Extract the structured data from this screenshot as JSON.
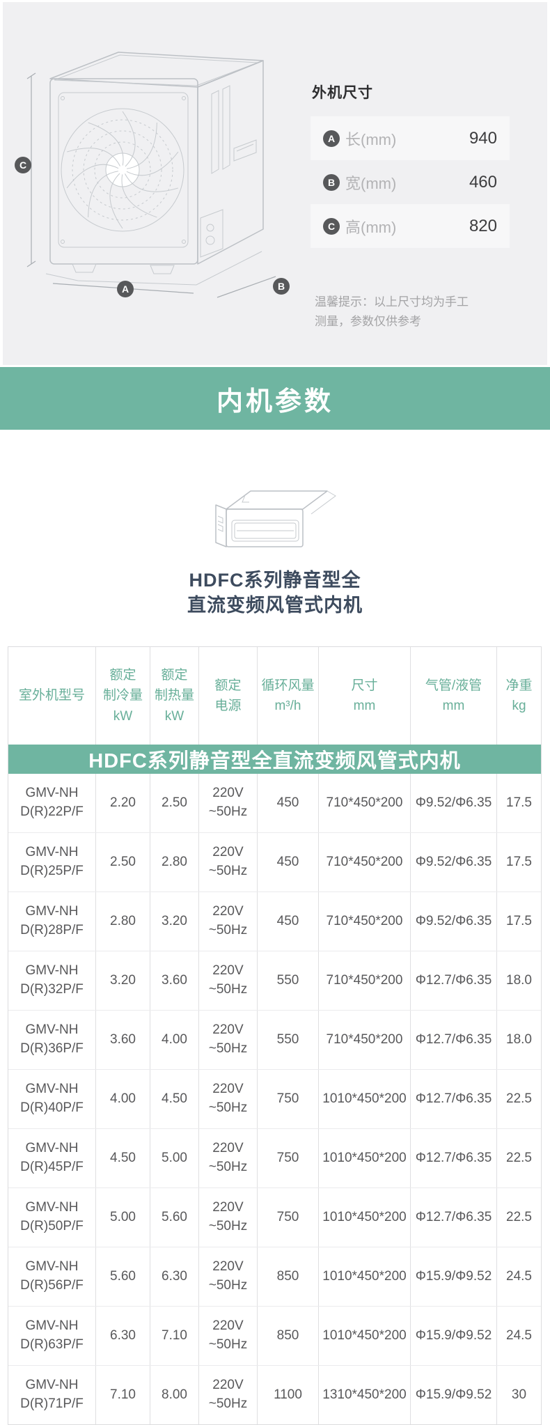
{
  "outer": {
    "title": "外机尺寸",
    "badges": {
      "a": "A",
      "b": "B",
      "c": "C"
    },
    "rows": [
      {
        "badge": "A",
        "label": "长(mm)",
        "value": "940"
      },
      {
        "badge": "B",
        "label": "宽(mm)",
        "value": "460"
      },
      {
        "badge": "C",
        "label": "高(mm)",
        "value": "820"
      }
    ],
    "tip": "温馨提示：以上尺寸均为手工\n测量，参数仅供参考"
  },
  "banner": {
    "title": "内机参数"
  },
  "product": {
    "title": "HDFC系列静音型全\n直流变频风管式内机"
  },
  "table": {
    "headers": [
      "室外机型号",
      "额定\n制冷量\nkW",
      "额定\n制热量\nkW",
      "额定\n电源",
      "循环风量\nm³/h",
      "尺寸\nmm",
      "气管/液管\nmm",
      "净重\nkg"
    ],
    "group_title": "HDFC系列静音型全直流变频风管式内机",
    "rows": [
      [
        "GMV-NH\nD(R)22P/F",
        "2.20",
        "2.50",
        "220V\n~50Hz",
        "450",
        "710*450*200",
        "Φ9.52/Φ6.35",
        "17.5"
      ],
      [
        "GMV-NH\nD(R)25P/F",
        "2.50",
        "2.80",
        "220V\n~50Hz",
        "450",
        "710*450*200",
        "Φ9.52/Φ6.35",
        "17.5"
      ],
      [
        "GMV-NH\nD(R)28P/F",
        "2.80",
        "3.20",
        "220V\n~50Hz",
        "450",
        "710*450*200",
        "Φ9.52/Φ6.35",
        "17.5"
      ],
      [
        "GMV-NH\nD(R)32P/F",
        "3.20",
        "3.60",
        "220V\n~50Hz",
        "550",
        "710*450*200",
        "Φ12.7/Φ6.35",
        "18.0"
      ],
      [
        "GMV-NH\nD(R)36P/F",
        "3.60",
        "4.00",
        "220V\n~50Hz",
        "550",
        "710*450*200",
        "Φ12.7/Φ6.35",
        "18.0"
      ],
      [
        "GMV-NH\nD(R)40P/F",
        "4.00",
        "4.50",
        "220V\n~50Hz",
        "750",
        "1010*450*200",
        "Φ12.7/Φ6.35",
        "22.5"
      ],
      [
        "GMV-NH\nD(R)45P/F",
        "4.50",
        "5.00",
        "220V\n~50Hz",
        "750",
        "1010*450*200",
        "Φ12.7/Φ6.35",
        "22.5"
      ],
      [
        "GMV-NH\nD(R)50P/F",
        "5.00",
        "5.60",
        "220V\n~50Hz",
        "750",
        "1010*450*200",
        "Φ12.7/Φ6.35",
        "22.5"
      ],
      [
        "GMV-NH\nD(R)56P/F",
        "5.60",
        "6.30",
        "220V\n~50Hz",
        "850",
        "1010*450*200",
        "Φ15.9/Φ9.52",
        "24.5"
      ],
      [
        "GMV-NH\nD(R)63P/F",
        "6.30",
        "7.10",
        "220V\n~50Hz",
        "850",
        "1010*450*200",
        "Φ15.9/Φ9.52",
        "24.5"
      ],
      [
        "GMV-NH\nD(R)71P/F",
        "7.10",
        "8.00",
        "220V\n~50Hz",
        "1100",
        "1310*450*200",
        "Φ15.9/Φ9.52",
        "30"
      ]
    ]
  },
  "colors": {
    "accent_green": "#6fb5a1",
    "table_header_green": "#68af99",
    "panel_gray": "#f0f0f2"
  }
}
